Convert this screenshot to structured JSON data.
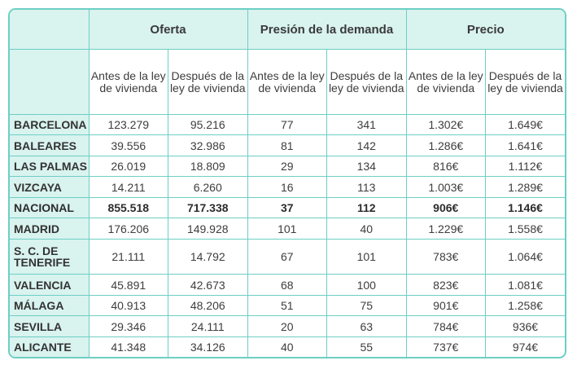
{
  "groups": [
    "Oferta",
    "Presión de la demanda",
    "Precio"
  ],
  "subheaders": [
    "Antes de la ley de vivienda",
    "Después de la ley de vivienda",
    "Antes de la ley de vivienda",
    "Después de la ley de vivienda",
    "Antes de la ley de vivienda",
    "Después de la ley de vivienda"
  ],
  "rows": [
    {
      "label": "BARCELONA",
      "values": [
        "123.279",
        "95.216",
        "77",
        "341",
        "1.302€",
        "1.649€"
      ]
    },
    {
      "label": "BALEARES",
      "values": [
        "39.556",
        "32.986",
        "81",
        "142",
        "1.286€",
        "1.641€"
      ]
    },
    {
      "label": "LAS PALMAS",
      "values": [
        "26.019",
        "18.809",
        "29",
        "134",
        "816€",
        "1.112€"
      ]
    },
    {
      "label": "VIZCAYA",
      "values": [
        "14.211",
        "6.260",
        "16",
        "113",
        "1.003€",
        "1.289€"
      ]
    },
    {
      "label": "NACIONAL",
      "values": [
        "855.518",
        "717.338",
        "37",
        "112",
        "906€",
        "1.146€"
      ]
    },
    {
      "label": "MADRID",
      "values": [
        "176.206",
        "149.928",
        "101",
        "40",
        "1.229€",
        "1.558€"
      ]
    },
    {
      "label": "S. C. DE TENERIFE",
      "values": [
        "21.111",
        "14.792",
        "67",
        "101",
        "783€",
        "1.064€"
      ]
    },
    {
      "label": "VALENCIA",
      "values": [
        "45.891",
        "42.673",
        "68",
        "100",
        "823€",
        "1.081€"
      ]
    },
    {
      "label": "MÁLAGA",
      "values": [
        "40.913",
        "48.206",
        "51",
        "75",
        "901€",
        "1.258€"
      ]
    },
    {
      "label": "SEVILLA",
      "values": [
        "29.346",
        "24.111",
        "20",
        "63",
        "784€",
        "936€"
      ]
    },
    {
      "label": "ALICANTE",
      "values": [
        "41.348",
        "34.126",
        "40",
        "55",
        "737€",
        "974€"
      ]
    }
  ],
  "colors": {
    "border": "#6dcfc3",
    "header_bg": "#d9f3ef",
    "text": "#3d3d3d"
  }
}
